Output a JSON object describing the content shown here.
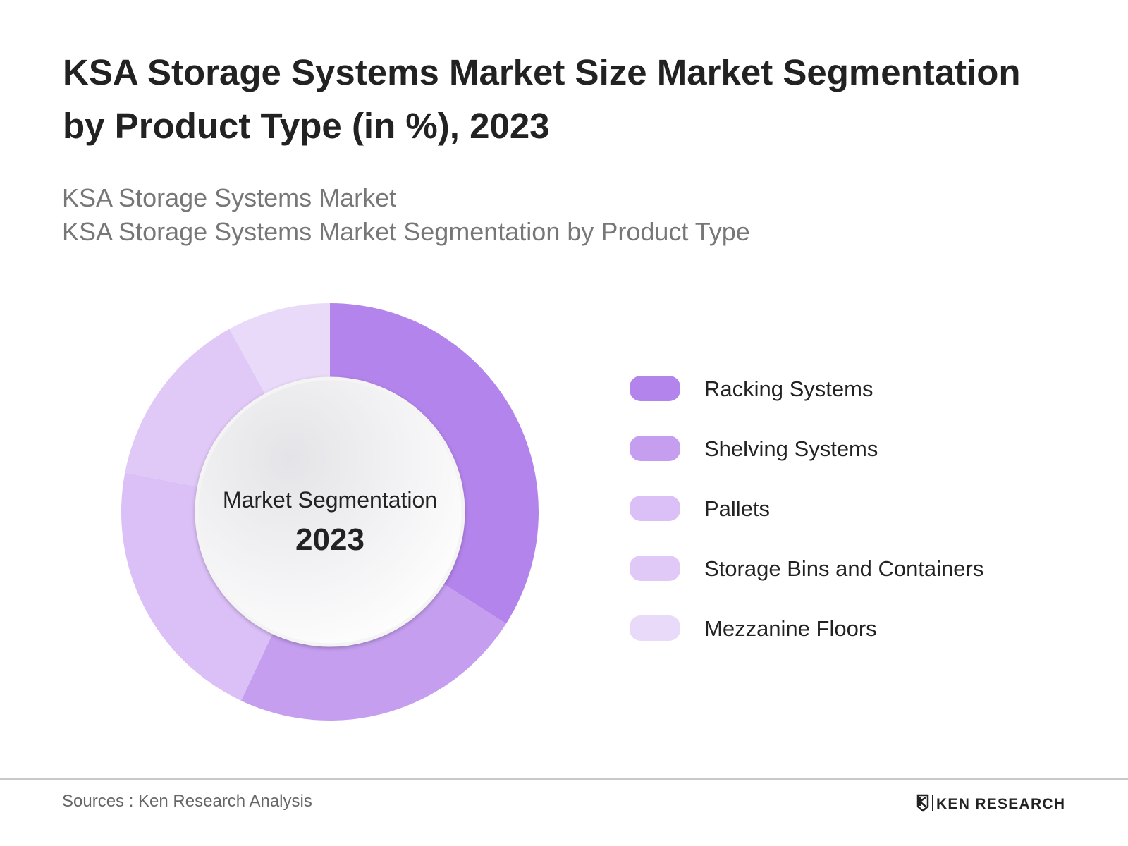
{
  "chart_data": {
    "type": "donut",
    "title": [
      "KSA Storage Systems Market Size Market Segmentation",
      "by Product Type (in %), 2023"
    ],
    "subtitle": [
      "KSA Storage Systems Market",
      "KSA Storage Systems Market Segmentation by Product Type"
    ],
    "center_label": "Market Segmentation",
    "center_year": "2023",
    "categories": [
      "Racking Systems",
      "Shelving Systems",
      "Pallets",
      "Storage Bins and Containers",
      "Mezzanine Floors"
    ],
    "values": [
      34,
      23,
      21,
      14,
      8
    ],
    "colors": [
      "#b384eb",
      "#c59ef0",
      "#dbbff7",
      "#e0c8f7",
      "#e9dafa"
    ],
    "legend": "right"
  },
  "footer": {
    "source": "Sources : Ken Research Analysis",
    "logo": "KEN RESEARCH"
  }
}
